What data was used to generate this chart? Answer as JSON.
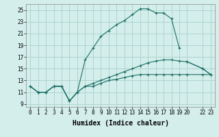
{
  "xlabel": "Humidex (Indice chaleur)",
  "background_color": "#d4eeeb",
  "grid_color": "#aed4d0",
  "line_color": "#1a6e64",
  "xlim": [
    -0.5,
    23.5
  ],
  "ylim": [
    8.5,
    26.0
  ],
  "yticks": [
    9,
    11,
    13,
    15,
    17,
    19,
    21,
    23,
    25
  ],
  "xticks": [
    0,
    1,
    2,
    3,
    4,
    5,
    6,
    7,
    8,
    9,
    10,
    11,
    12,
    13,
    14,
    15,
    16,
    17,
    18,
    19,
    20,
    22,
    23
  ],
  "xtick_labels": [
    "0",
    "1",
    "2",
    "3",
    "4",
    "5",
    "6",
    "7",
    "8",
    "9",
    "10",
    "11",
    "12",
    "13",
    "14",
    "15",
    "16",
    "17",
    "18",
    "19",
    "20",
    "22",
    "23"
  ],
  "series": [
    {
      "x": [
        0,
        1,
        2,
        3,
        4,
        5,
        6,
        7,
        8,
        9,
        10,
        11,
        12,
        13,
        14,
        15,
        16,
        17,
        18,
        19
      ],
      "y": [
        12,
        11,
        11,
        12,
        12,
        9.5,
        11,
        16.5,
        18.5,
        20.5,
        21.5,
        22.5,
        23.2,
        24.2,
        25.2,
        25.2,
        24.5,
        24.5,
        23.5,
        18.5
      ]
    },
    {
      "x": [
        0,
        1,
        2,
        3,
        4,
        5,
        6,
        7,
        8,
        9,
        10,
        11,
        12,
        13,
        14,
        15,
        16,
        17,
        18,
        19,
        20,
        22,
        23
      ],
      "y": [
        12,
        11,
        11,
        12,
        12,
        9.5,
        11,
        12,
        12.5,
        13,
        13.5,
        14,
        14.5,
        15,
        15.5,
        16,
        16.3,
        16.5,
        16.5,
        16.3,
        16.2,
        15,
        14
      ]
    },
    {
      "x": [
        0,
        1,
        2,
        3,
        4,
        5,
        6,
        7,
        8,
        9,
        10,
        11,
        12,
        13,
        14,
        15,
        16,
        17,
        18,
        19,
        20,
        22,
        23
      ],
      "y": [
        12,
        11,
        11,
        12,
        12,
        9.5,
        11,
        12,
        12,
        12.5,
        13,
        13.2,
        13.5,
        13.8,
        14,
        14,
        14,
        14,
        14,
        14,
        14,
        14,
        14
      ]
    },
    {
      "x": [
        20,
        22,
        23
      ],
      "y": [
        16.2,
        15,
        14
      ]
    }
  ]
}
